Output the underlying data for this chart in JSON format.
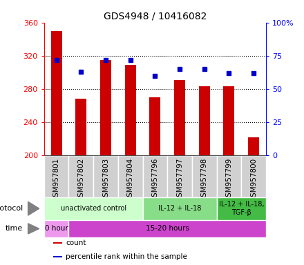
{
  "title": "GDS4948 / 10416082",
  "samples": [
    "GSM957801",
    "GSM957802",
    "GSM957803",
    "GSM957804",
    "GSM957796",
    "GSM957797",
    "GSM957798",
    "GSM957799",
    "GSM957800"
  ],
  "counts": [
    350,
    268,
    315,
    309,
    270,
    291,
    283,
    283,
    222
  ],
  "percentiles": [
    72,
    63,
    72,
    72,
    60,
    65,
    65,
    62,
    62
  ],
  "ylim_left": [
    200,
    360
  ],
  "yticks_left": [
    200,
    240,
    280,
    320,
    360
  ],
  "ylim_right": [
    0,
    100
  ],
  "yticks_right": [
    0,
    25,
    50,
    75,
    100
  ],
  "bar_color": "#cc0000",
  "dot_color": "#0000cc",
  "protocol_groups": [
    {
      "label": "unactivated control",
      "start": 0,
      "end": 4,
      "color": "#ccffcc"
    },
    {
      "label": "IL-12 + IL-18",
      "start": 4,
      "end": 7,
      "color": "#88dd88"
    },
    {
      "label": "IL-12 + IL-18,\nTGF-β",
      "start": 7,
      "end": 9,
      "color": "#44bb44"
    }
  ],
  "time_groups": [
    {
      "label": "0 hour",
      "start": 0,
      "end": 1,
      "color": "#ee99ee"
    },
    {
      "label": "15-20 hours",
      "start": 1,
      "end": 9,
      "color": "#cc44cc"
    }
  ],
  "legend_items": [
    {
      "color": "#cc0000",
      "label": "count"
    },
    {
      "color": "#0000cc",
      "label": "percentile rank within the sample"
    }
  ],
  "tick_label_fontsize": 7.5,
  "bar_width": 0.45
}
